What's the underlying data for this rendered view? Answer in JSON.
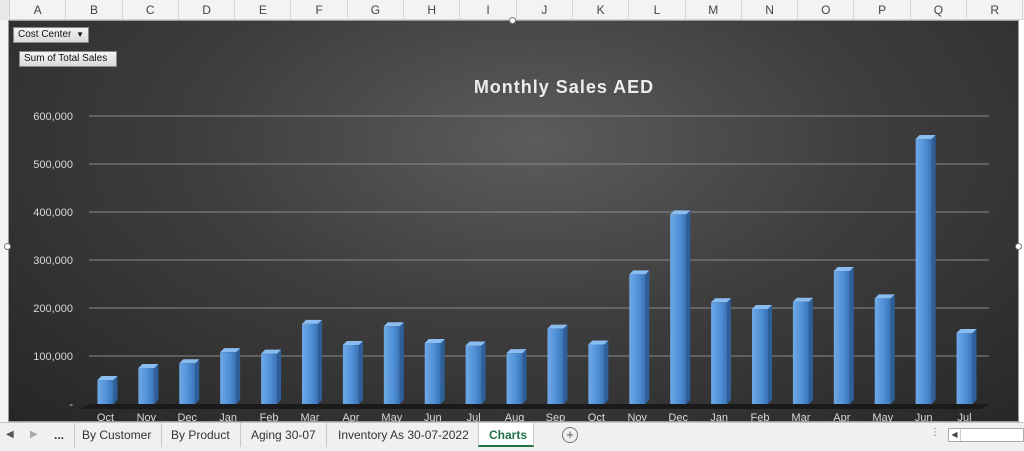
{
  "columns": [
    "A",
    "B",
    "C",
    "D",
    "E",
    "F",
    "G",
    "H",
    "I",
    "J",
    "K",
    "L",
    "M",
    "N",
    "O",
    "P",
    "Q",
    "R"
  ],
  "pivot": {
    "filter_label": "Cost Center",
    "value_label": "Sum of Total Sales"
  },
  "sheet_tabs": {
    "ellipsis": "...",
    "items": [
      {
        "label": "By Customer"
      },
      {
        "label": "By Product"
      },
      {
        "label": "Aging 30-07"
      },
      {
        "label": "Inventory As 30-07-2022"
      },
      {
        "label": "Charts"
      }
    ],
    "active": "Charts",
    "add_symbol": "+"
  },
  "colors": {
    "bar": "#4f8fd6",
    "grid": "#8a8a8a",
    "text": "#d9d9d9",
    "accent": "#217346"
  },
  "chart_data": {
    "type": "bar",
    "title": "Monthly Sales AED",
    "xlabel": "",
    "ylabel": "",
    "ylim": [
      0,
      600000
    ],
    "yticks": [
      0,
      100000,
      200000,
      300000,
      400000,
      500000,
      600000
    ],
    "ytick_labels": [
      "-",
      "100,000",
      "200,000",
      "300,000",
      "400,000",
      "500,000",
      "600,000"
    ],
    "grid": true,
    "legend": "none",
    "categories": [
      "Oct",
      "Nov",
      "Dec",
      "Jan",
      "Feb",
      "Mar",
      "Apr",
      "May",
      "Jun",
      "Jul",
      "Aug",
      "Sep",
      "Oct",
      "Nov",
      "Dec",
      "Jan",
      "Feb",
      "Mar",
      "Apr",
      "May",
      "Jun",
      "Jul"
    ],
    "values": [
      50000,
      75000,
      85000,
      108000,
      105000,
      167000,
      123000,
      162000,
      127000,
      122000,
      106000,
      157000,
      124000,
      270000,
      395000,
      212000,
      198000,
      213000,
      277000,
      220000,
      552000,
      148000
    ]
  }
}
